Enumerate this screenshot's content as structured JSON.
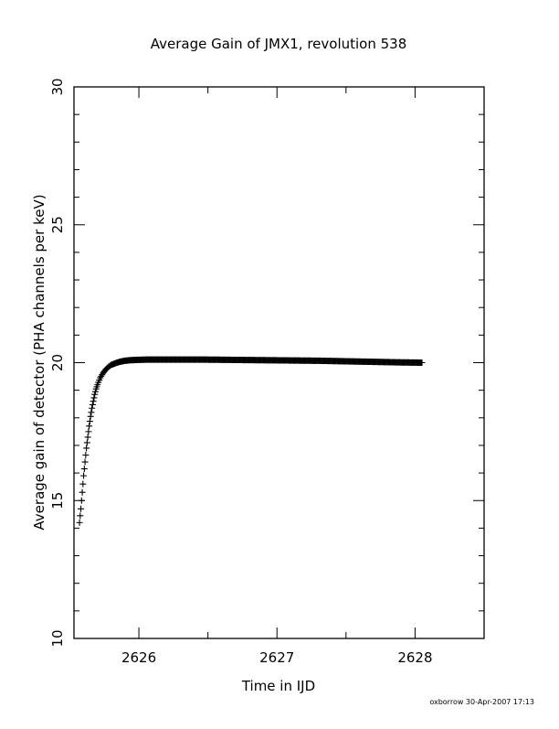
{
  "chart_data": {
    "type": "scatter",
    "title": "Average Gain of JMX1, revolution 538",
    "xlabel": "Time in IJD",
    "ylabel": "Average gain of detector (PHA channels per keV)",
    "xlim": [
      2625.53,
      2628.5
    ],
    "ylim": [
      10,
      30
    ],
    "x_ticks": [
      2626,
      2627,
      2628
    ],
    "y_ticks": [
      10,
      15,
      20,
      25,
      30
    ],
    "x_minor_step": 0.1,
    "y_minor_step": 1,
    "marker": "plus",
    "color": "#000000",
    "grid": false,
    "legend": "none",
    "series": [
      {
        "x": [
          2625.57,
          2625.58,
          2625.59,
          2625.6,
          2625.61,
          2625.62,
          2625.63,
          2625.64,
          2625.65,
          2625.66,
          2625.67,
          2625.68,
          2625.69,
          2625.7,
          2625.72,
          2625.74,
          2625.76,
          2625.78,
          2625.8,
          2625.83,
          2625.86,
          2625.9,
          2625.94,
          2625.98,
          2626.05,
          2626.15,
          2626.3,
          2626.5,
          2626.7,
          2626.9,
          2627.1,
          2627.3,
          2627.5,
          2627.7,
          2627.9,
          2628.05
        ],
        "y": [
          14.2,
          14.7,
          15.3,
          15.9,
          16.4,
          16.9,
          17.3,
          17.7,
          18.05,
          18.35,
          18.6,
          18.85,
          19.05,
          19.2,
          19.45,
          19.62,
          19.75,
          19.85,
          19.92,
          19.98,
          20.03,
          20.07,
          20.09,
          20.1,
          20.11,
          20.11,
          20.11,
          20.11,
          20.1,
          20.09,
          20.08,
          20.07,
          20.05,
          20.03,
          20.01,
          20.0
        ]
      }
    ]
  },
  "footer": {
    "credit": "oxborrow 30-Apr-2007 17:13"
  }
}
